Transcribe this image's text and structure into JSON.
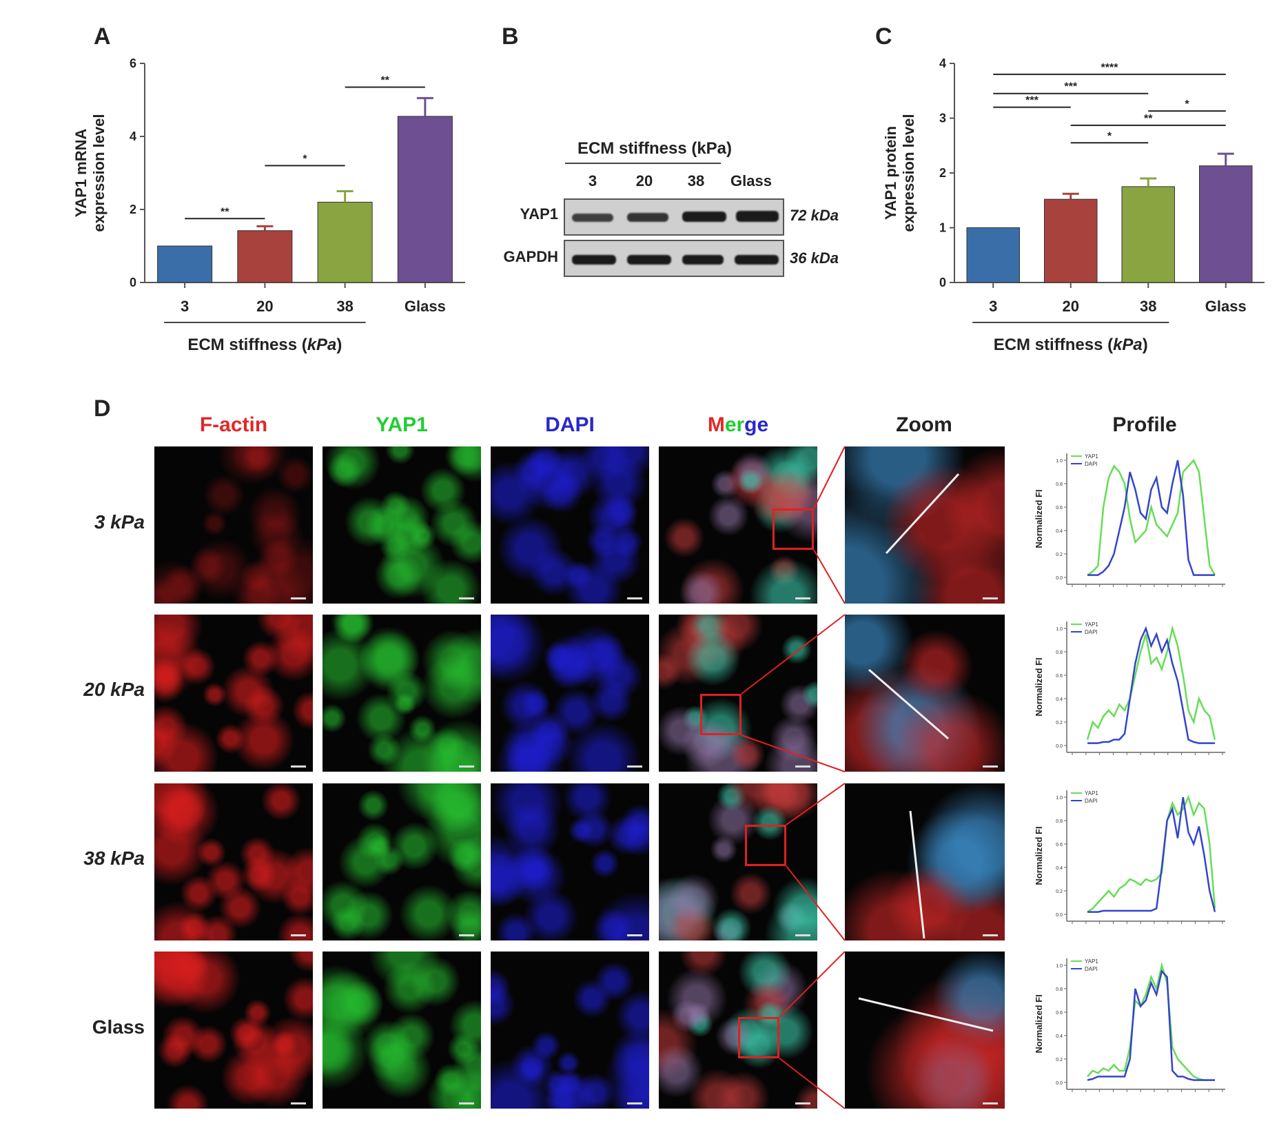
{
  "panels": {
    "a": "A",
    "b": "B",
    "c": "C",
    "d": "D"
  },
  "chart_data": [
    {
      "id": "A",
      "type": "bar",
      "categories": [
        "3",
        "20",
        "38",
        "Glass"
      ],
      "values": [
        1.0,
        1.42,
        2.2,
        4.55
      ],
      "errors": [
        0,
        0.12,
        0.3,
        0.5
      ],
      "colors": [
        "#3a6ea8",
        "#a8423d",
        "#8aa441",
        "#6e4f92"
      ],
      "ylabel": "YAP1 mRNA expression level",
      "xlabel": "ECM stiffness (kPa)",
      "ylim": [
        0,
        6
      ],
      "yticks": [
        "0",
        "2",
        "4",
        "6"
      ],
      "significance": [
        {
          "from": 0,
          "to": 1,
          "y": 1.75,
          "label": "**"
        },
        {
          "from": 1,
          "to": 2,
          "y": 3.2,
          "label": "*"
        },
        {
          "from": 2,
          "to": 3,
          "y": 5.35,
          "label": "**"
        }
      ]
    },
    {
      "id": "C",
      "type": "bar",
      "categories": [
        "3",
        "20",
        "38",
        "Glass"
      ],
      "values": [
        1.0,
        1.52,
        1.75,
        2.13
      ],
      "errors": [
        0,
        0.1,
        0.15,
        0.22
      ],
      "colors": [
        "#3a6ea8",
        "#a8423d",
        "#8aa441",
        "#6e4f92"
      ],
      "ylabel": "YAP1 protein expression level",
      "xlabel": "ECM stiffness (kPa)",
      "ylim": [
        0,
        4
      ],
      "yticks": [
        "0",
        "1",
        "2",
        "3",
        "4"
      ],
      "significance": [
        {
          "from": 0,
          "to": 3,
          "y": 3.8,
          "label": "****"
        },
        {
          "from": 0,
          "to": 2,
          "y": 3.45,
          "label": "***"
        },
        {
          "from": 0,
          "to": 1,
          "y": 3.2,
          "label": "***"
        },
        {
          "from": 2,
          "to": 3,
          "y": 3.13,
          "label": "*"
        },
        {
          "from": 1,
          "to": 3,
          "y": 2.87,
          "label": "**"
        },
        {
          "from": 1,
          "to": 2,
          "y": 2.55,
          "label": "*"
        }
      ]
    },
    {
      "id": "D-profile-3",
      "type": "line",
      "ylabel": "Normalized FI",
      "yticks": [
        "0.0",
        "0.2",
        "0.4",
        "0.6",
        "0.8",
        "1.0"
      ],
      "legend": [
        "YAP1",
        "DAPI"
      ],
      "series": [
        {
          "name": "YAP1",
          "color": "#66dd55",
          "values": [
            0.02,
            0.05,
            0.1,
            0.6,
            0.85,
            0.95,
            0.9,
            0.8,
            0.5,
            0.3,
            0.35,
            0.4,
            0.6,
            0.45,
            0.4,
            0.35,
            0.45,
            0.55,
            0.9,
            0.95,
            1.0,
            0.9,
            0.5,
            0.1,
            0.02
          ]
        },
        {
          "name": "DAPI",
          "color": "#3344cc",
          "values": [
            0.02,
            0.02,
            0.02,
            0.05,
            0.1,
            0.2,
            0.4,
            0.6,
            0.9,
            0.75,
            0.55,
            0.5,
            0.75,
            0.85,
            0.6,
            0.55,
            0.8,
            1.0,
            0.7,
            0.15,
            0.02,
            0.02,
            0.02,
            0.02,
            0.02
          ]
        }
      ]
    },
    {
      "id": "D-profile-20",
      "type": "line",
      "ylabel": "Normalized FI",
      "yticks": [
        "0.0",
        "0.2",
        "0.4",
        "0.6",
        "0.8",
        "1.0"
      ],
      "legend": [
        "YAP1",
        "DAPI"
      ],
      "series": [
        {
          "name": "YAP1",
          "color": "#66dd55",
          "values": [
            0.05,
            0.2,
            0.15,
            0.25,
            0.3,
            0.25,
            0.35,
            0.3,
            0.4,
            0.6,
            0.8,
            0.95,
            0.7,
            0.75,
            0.65,
            0.8,
            1.0,
            0.85,
            0.6,
            0.3,
            0.2,
            0.4,
            0.3,
            0.25,
            0.05
          ]
        },
        {
          "name": "DAPI",
          "color": "#3344cc",
          "values": [
            0.02,
            0.02,
            0.02,
            0.03,
            0.03,
            0.05,
            0.05,
            0.1,
            0.4,
            0.7,
            0.9,
            1.0,
            0.85,
            0.95,
            0.8,
            0.9,
            0.7,
            0.55,
            0.3,
            0.05,
            0.03,
            0.02,
            0.02,
            0.02,
            0.02
          ]
        }
      ]
    },
    {
      "id": "D-profile-38",
      "type": "line",
      "ylabel": "Normalized FI",
      "yticks": [
        "0.0",
        "0.2",
        "0.4",
        "0.6",
        "0.8",
        "1.0"
      ],
      "legend": [
        "YAP1",
        "DAPI"
      ],
      "series": [
        {
          "name": "YAP1",
          "color": "#66dd55",
          "values": [
            0.02,
            0.05,
            0.1,
            0.15,
            0.2,
            0.15,
            0.22,
            0.25,
            0.3,
            0.28,
            0.25,
            0.3,
            0.28,
            0.3,
            0.35,
            0.8,
            0.95,
            0.85,
            0.9,
            1.0,
            0.85,
            0.95,
            0.9,
            0.6,
            0.05
          ]
        },
        {
          "name": "DAPI",
          "color": "#3344cc",
          "values": [
            0.02,
            0.02,
            0.02,
            0.03,
            0.03,
            0.03,
            0.03,
            0.03,
            0.03,
            0.03,
            0.03,
            0.03,
            0.03,
            0.05,
            0.4,
            0.8,
            0.9,
            0.65,
            1.0,
            0.7,
            0.6,
            0.75,
            0.5,
            0.2,
            0.02
          ]
        }
      ]
    },
    {
      "id": "D-profile-glass",
      "type": "line",
      "ylabel": "Normalized FI",
      "yticks": [
        "0.0",
        "0.2",
        "0.4",
        "0.6",
        "0.8",
        "1.0"
      ],
      "legend": [
        "YAP1",
        "DAPI"
      ],
      "series": [
        {
          "name": "YAP1",
          "color": "#66dd55",
          "values": [
            0.05,
            0.1,
            0.08,
            0.12,
            0.1,
            0.15,
            0.1,
            0.1,
            0.3,
            0.7,
            0.65,
            0.75,
            0.9,
            0.8,
            1.0,
            0.85,
            0.3,
            0.2,
            0.15,
            0.1,
            0.05,
            0.03,
            0.02,
            0.02,
            0.02
          ]
        },
        {
          "name": "DAPI",
          "color": "#3344cc",
          "values": [
            0.02,
            0.03,
            0.05,
            0.05,
            0.05,
            0.05,
            0.05,
            0.05,
            0.2,
            0.8,
            0.65,
            0.7,
            0.85,
            0.75,
            0.95,
            0.9,
            0.1,
            0.05,
            0.05,
            0.03,
            0.02,
            0.02,
            0.02,
            0.02,
            0.02
          ]
        }
      ]
    }
  ],
  "western": {
    "header": "ECM stiffness (kPa)",
    "lanes": [
      "3",
      "20",
      "38",
      "Glass"
    ],
    "rows": [
      {
        "protein": "YAP1",
        "size": "72 kDa"
      },
      {
        "protein": "GAPDH",
        "size": "36 kDa"
      }
    ]
  },
  "microscopy": {
    "columns": [
      "F-actin",
      "YAP1",
      "DAPI",
      "Merge",
      "Zoom",
      "Profile"
    ],
    "merge_letters": [
      "M",
      "er",
      "ge"
    ],
    "rows": [
      "3 kPa",
      "20 kPa",
      "38 kPa",
      "Glass"
    ],
    "channel_colors": {
      "factin": "#e02828",
      "yap1": "#22cc33",
      "dapi": "#2828cc"
    }
  }
}
